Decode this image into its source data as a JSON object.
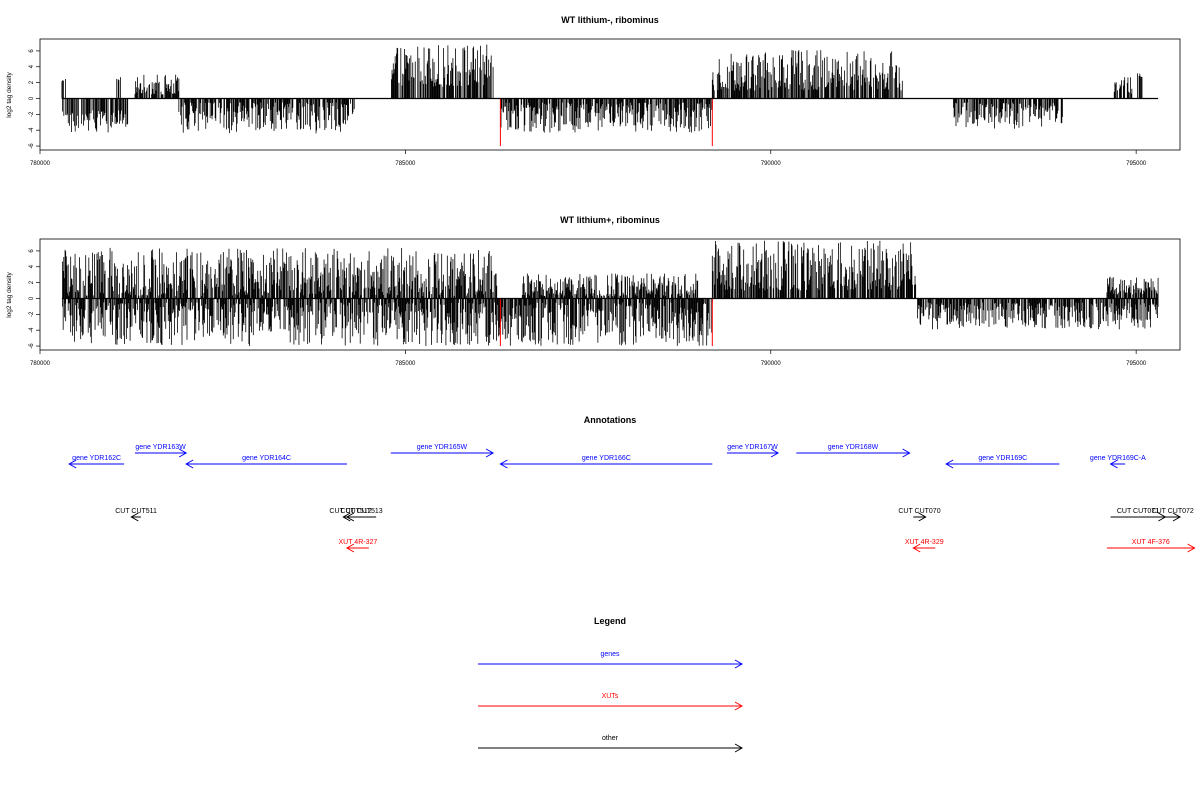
{
  "chart_data": [
    {
      "type": "bar",
      "title": "WT lithium-, ribominus",
      "ylabel": "log2 tag density",
      "xlabel": "",
      "xlim": [
        780000,
        795600
      ],
      "ylim": [
        -6.5,
        7.5
      ],
      "x_ticks": [
        780000,
        785000,
        790000,
        795000
      ],
      "y_ticks": [
        -6,
        -4,
        -2,
        0,
        2,
        4,
        6
      ],
      "grid": false,
      "baseline_range": [
        780300,
        795300
      ],
      "series": [
        {
          "segments": [
            {
              "range": [
                780300,
                780350
              ],
              "sign": 1,
              "min": 2.0,
              "max": 3.2
            },
            {
              "range": [
                781050,
                781100
              ],
              "sign": 1,
              "min": 1.5,
              "max": 2.8
            },
            {
              "range": [
                781300,
                781900
              ],
              "sign": 1,
              "min": 0.5,
              "max": 3.0
            },
            {
              "range": [
                784800,
                786200
              ],
              "sign": 1,
              "min": 1.5,
              "max": 6.8
            },
            {
              "range": [
                789200,
                791800
              ],
              "sign": 1,
              "min": 1.0,
              "max": 6.1
            },
            {
              "range": [
                794700,
                794950
              ],
              "sign": 1,
              "min": 0.5,
              "max": 2.7
            },
            {
              "range": [
                795020,
                795080
              ],
              "sign": 1,
              "min": 2.5,
              "max": 3.2
            },
            {
              "range": [
                780300,
                781200
              ],
              "sign": -1,
              "min": 1.5,
              "max": 4.3
            },
            {
              "range": [
                781900,
                784300
              ],
              "sign": -1,
              "min": 0.5,
              "max": 4.4
            },
            {
              "range": [
                786300,
                789200
              ],
              "sign": -1,
              "min": 0.5,
              "max": 4.4
            },
            {
              "range": [
                792500,
                794000
              ],
              "sign": -1,
              "min": 0.5,
              "max": 3.9
            }
          ]
        }
      ],
      "red_lines": [
        {
          "x": 786300,
          "y": -6
        },
        {
          "x": 789200,
          "y": -6
        }
      ]
    },
    {
      "type": "bar",
      "title": "WT lithium+, ribominus",
      "ylabel": "log2 tag density",
      "xlabel": "",
      "xlim": [
        780000,
        795600
      ],
      "ylim": [
        -6.5,
        7.5
      ],
      "x_ticks": [
        780000,
        785000,
        790000,
        795000
      ],
      "y_ticks": [
        -6,
        -4,
        -2,
        0,
        2,
        4,
        6
      ],
      "grid": false,
      "baseline_range": [
        780300,
        795300
      ],
      "series": [
        {
          "segments": [
            {
              "range": [
                780300,
                786250
              ],
              "sign": 1,
              "min": 0.3,
              "max": 6.4
            },
            {
              "range": [
                786600,
                789000
              ],
              "sign": 1,
              "min": 0.3,
              "max": 3.2
            },
            {
              "range": [
                789200,
                792000
              ],
              "sign": 1,
              "min": 1.0,
              "max": 7.3
            },
            {
              "range": [
                794600,
                795300
              ],
              "sign": 1,
              "min": 0.5,
              "max": 3.0
            },
            {
              "range": [
                780300,
                789200
              ],
              "sign": -1,
              "min": 0.5,
              "max": 6.0
            },
            {
              "range": [
                792000,
                795300
              ],
              "sign": -1,
              "min": 0.5,
              "max": 3.9
            }
          ]
        }
      ],
      "red_lines": [
        {
          "x": 786300,
          "y": -6
        },
        {
          "x": 789200,
          "y": -6
        }
      ]
    }
  ],
  "annotations": {
    "title": "Annotations",
    "items": [
      {
        "label": "gene YDR162C",
        "color": "#0000ff",
        "dir": "left",
        "start": 780400,
        "end": 781150,
        "row": 2
      },
      {
        "label": "gene YDR163W",
        "color": "#0000ff",
        "dir": "right",
        "start": 781300,
        "end": 782000,
        "row": 1
      },
      {
        "label": "gene YDR164C",
        "color": "#0000ff",
        "dir": "left",
        "start": 782000,
        "end": 784200,
        "row": 2
      },
      {
        "label": "gene YDR165W",
        "color": "#0000ff",
        "dir": "right",
        "start": 784800,
        "end": 786200,
        "row": 1
      },
      {
        "label": "gene YDR166C",
        "color": "#0000ff",
        "dir": "left",
        "start": 786300,
        "end": 789200,
        "row": 2
      },
      {
        "label": "gene YDR167W",
        "color": "#0000ff",
        "dir": "right",
        "start": 789400,
        "end": 790100,
        "row": 1
      },
      {
        "label": "gene YDR168W",
        "color": "#0000ff",
        "dir": "right",
        "start": 790350,
        "end": 791900,
        "row": 1
      },
      {
        "label": "gene YDR169C",
        "color": "#0000ff",
        "dir": "left",
        "start": 792400,
        "end": 793950,
        "row": 2
      },
      {
        "label": "gene YDR169C-A",
        "color": "#0000ff",
        "dir": "left",
        "start": 794650,
        "end": 794850,
        "row": 2
      },
      {
        "label": "CUT CUT511",
        "color": "#000000",
        "dir": "left",
        "start": 781250,
        "end": 781380,
        "row": 3
      },
      {
        "label": "CUT CUT512",
        "color": "#000000",
        "dir": "left",
        "start": 784150,
        "end": 784350,
        "row": 3
      },
      {
        "label": "CUT CUT513",
        "color": "#000000",
        "dir": "left",
        "start": 784200,
        "end": 784600,
        "row": 3
      },
      {
        "label": "CUT CUT070",
        "color": "#000000",
        "dir": "right",
        "start": 791950,
        "end": 792120,
        "row": 3
      },
      {
        "label": "CUT CUT071",
        "color": "#000000",
        "dir": "right",
        "start": 794650,
        "end": 795400,
        "row": 3
      },
      {
        "label": "CUT CUT072",
        "color": "#000000",
        "dir": "right",
        "start": 795400,
        "end": 795600,
        "row": 3
      },
      {
        "label": "XUT 4R-327",
        "color": "#ff0000",
        "dir": "left",
        "start": 784200,
        "end": 784500,
        "row": 4
      },
      {
        "label": "XUT 4R-329",
        "color": "#ff0000",
        "dir": "left",
        "start": 791950,
        "end": 792250,
        "row": 4
      },
      {
        "label": "XUT 4F-376",
        "color": "#ff0000",
        "dir": "right",
        "start": 794600,
        "end": 795800,
        "row": 4
      }
    ]
  },
  "legend": {
    "title": "Legend",
    "items": [
      {
        "label": "genes",
        "color": "#0000ff"
      },
      {
        "label": "XUTs",
        "color": "#ff0000"
      },
      {
        "label": "other",
        "color": "#000000"
      }
    ]
  }
}
